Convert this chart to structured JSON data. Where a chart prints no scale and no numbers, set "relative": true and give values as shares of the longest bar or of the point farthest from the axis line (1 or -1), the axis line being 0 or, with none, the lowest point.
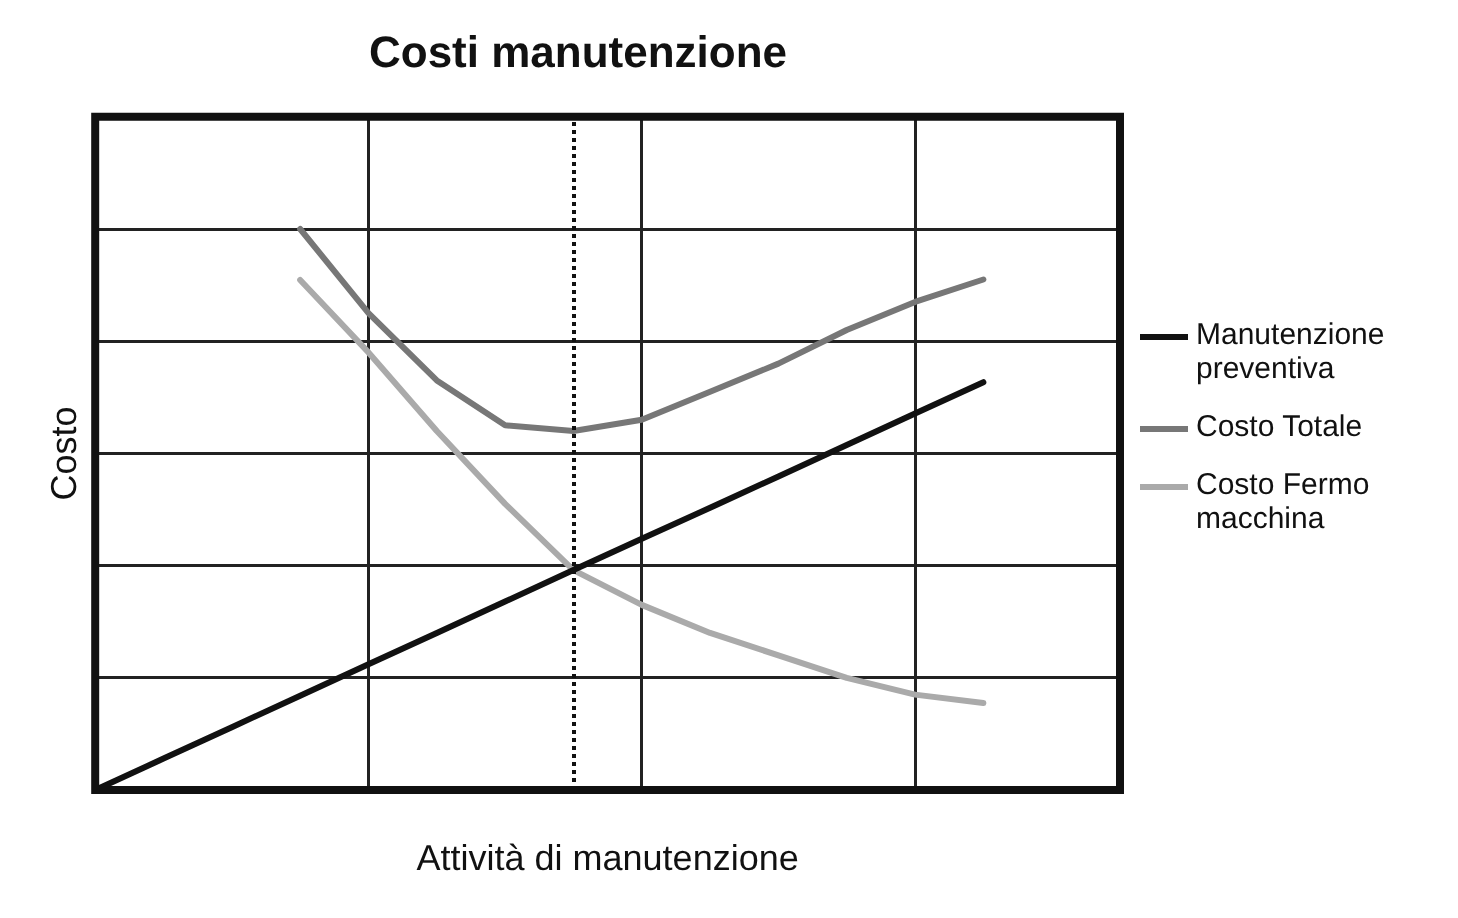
{
  "chart_data": {
    "type": "line",
    "title": "Costi manutenzione",
    "xlabel": "Attività di manutenzione",
    "ylabel": "Costo",
    "relative": true,
    "categories": [
      null,
      null,
      null,
      null,
      null,
      null,
      null,
      null,
      null,
      null,
      null,
      null,
      null,
      null,
      null,
      null
    ],
    "series": [
      {
        "name": "Manutenzione preventiva",
        "color": "#111111",
        "values": [
          0,
          0.056,
          0.112,
          0.168,
          0.224,
          0.28,
          0.336,
          0.392,
          0.448,
          0.503,
          0.559,
          0.615,
          0.671,
          0.727,
          null,
          null
        ]
      },
      {
        "name": "Costo Totale",
        "color": "#777777",
        "values": [
          null,
          null,
          null,
          1.0,
          0.85,
          0.73,
          0.65,
          0.64,
          0.66,
          0.71,
          0.76,
          0.82,
          0.87,
          0.91,
          null,
          null
        ]
      },
      {
        "name": "Costo Fermo macchina",
        "color": "#aaaaaa",
        "values": [
          null,
          null,
          null,
          0.909,
          0.78,
          0.64,
          0.51,
          0.392,
          0.33,
          0.28,
          0.24,
          0.2,
          0.17,
          0.155,
          null,
          null
        ]
      }
    ],
    "grid": true,
    "legend": "right",
    "marker": "none",
    "line_style": "solid"
  }
}
